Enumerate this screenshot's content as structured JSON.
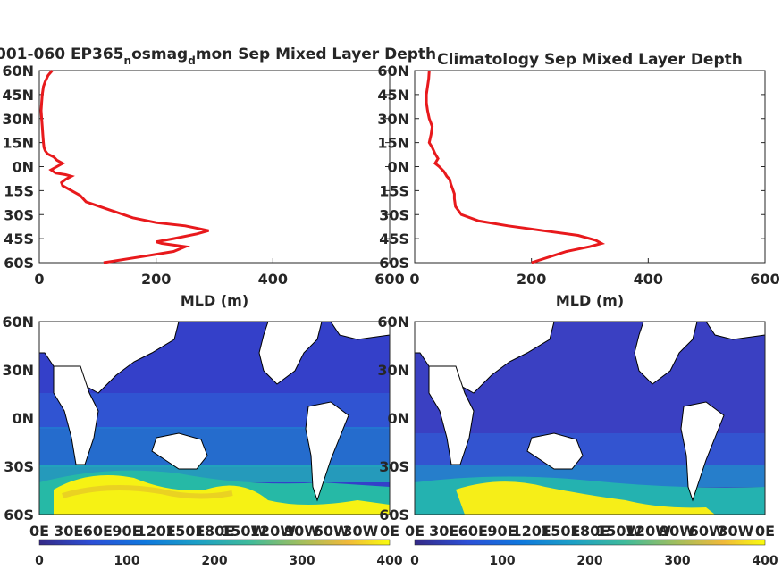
{
  "chart_data": [
    {
      "type": "line",
      "title_main": "001-060 EP365",
      "title_sub1": "n",
      "title_mid": "osmag",
      "title_sub2": "d",
      "title_end": "mon Sep Mixed Layer Depth",
      "xlabel": "MLD (m)",
      "ylabel": "",
      "xlim": [
        0,
        600
      ],
      "ylim": [
        -60,
        60
      ],
      "xticks": [
        "0",
        "200",
        "400",
        "600"
      ],
      "yticks": [
        "60N",
        "45N",
        "30N",
        "15N",
        "0N",
        "15S",
        "30S",
        "45S",
        "60S"
      ],
      "line_color": "#e8191c",
      "series": [
        {
          "mld": [
            22,
            15,
            10,
            7,
            5,
            4,
            3,
            4,
            5,
            6,
            7,
            8,
            10,
            14,
            25,
            30,
            40,
            30,
            20,
            28,
            45,
            55,
            45,
            38,
            40,
            50,
            70,
            80,
            120,
            160,
            200,
            250,
            290,
            270,
            230,
            200,
            210,
            250,
            230,
            180,
            110
          ],
          "lat": [
            60,
            57,
            53,
            50,
            45,
            40,
            35,
            30,
            25,
            20,
            15,
            12,
            10,
            8,
            6,
            4,
            2,
            0,
            -2,
            -4,
            -5,
            -6,
            -8,
            -10,
            -12,
            -14,
            -18,
            -22,
            -27,
            -32,
            -35,
            -37,
            -40,
            -42,
            -45,
            -47,
            -48,
            -50,
            -53,
            -56,
            -60
          ]
        }
      ]
    },
    {
      "type": "line",
      "title": "Climatology Sep Mixed Layer Depth",
      "xlabel": "MLD (m)",
      "ylabel": "",
      "xlim": [
        0,
        600
      ],
      "ylim": [
        -60,
        60
      ],
      "xticks": [
        "0",
        "200",
        "400",
        "600"
      ],
      "yticks": [
        "60N",
        "45N",
        "30N",
        "15N",
        "0N",
        "15S",
        "30S",
        "45S",
        "60S"
      ],
      "line_color": "#e8191c",
      "series": [
        {
          "mld": [
            25,
            24,
            22,
            20,
            20,
            22,
            25,
            30,
            28,
            25,
            30,
            35,
            40,
            35,
            42,
            50,
            55,
            60,
            62,
            65,
            68,
            68,
            70,
            80,
            110,
            160,
            220,
            280,
            310,
            320,
            300,
            260,
            200
          ],
          "lat": [
            60,
            55,
            50,
            45,
            40,
            35,
            30,
            25,
            20,
            15,
            12,
            8,
            5,
            2,
            0,
            -3,
            -6,
            -8,
            -11,
            -14,
            -17,
            -20,
            -25,
            -30,
            -34,
            -37,
            -40,
            -43,
            -46,
            -48,
            -50,
            -53,
            -60
          ]
        }
      ]
    },
    {
      "type": "heatmap",
      "title": "",
      "yticks": [
        "60N",
        "30N",
        "0N",
        "30S",
        "60S"
      ],
      "xticks": [
        "0E",
        "30E",
        "60E",
        "90E",
        "120E",
        "150E",
        "180E",
        "150W",
        "120W",
        "90W",
        "60W",
        "30W",
        "0E"
      ],
      "colorbar_ticks": [
        "0",
        "100",
        "200",
        "300",
        "400"
      ],
      "colorbar_range": [
        0,
        400
      ],
      "colormap": "parula"
    },
    {
      "type": "heatmap",
      "title": "",
      "yticks": [
        "60N",
        "30N",
        "0N",
        "30S",
        "60S"
      ],
      "xticks": [
        "0E",
        "30E",
        "60E",
        "90E",
        "120E",
        "150E",
        "180E",
        "150W",
        "120W",
        "90W",
        "60W",
        "30W",
        "0E"
      ],
      "colorbar_ticks": [
        "0",
        "100",
        "200",
        "300",
        "400"
      ],
      "colorbar_range": [
        0,
        400
      ],
      "colormap": "parula"
    }
  ]
}
